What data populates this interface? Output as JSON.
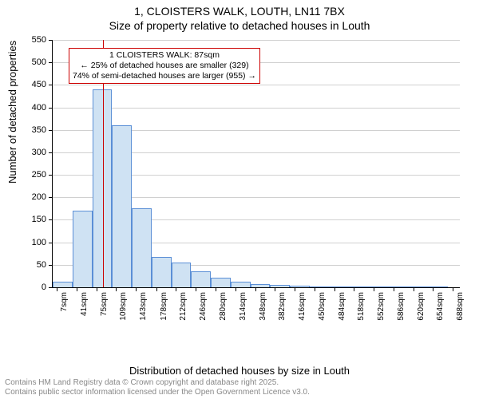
{
  "title": {
    "main": "1, CLOISTERS WALK, LOUTH, LN11 7BX",
    "sub": "Size of property relative to detached houses in Louth",
    "fontsize": 14,
    "color": "#000000"
  },
  "chart": {
    "type": "histogram",
    "background_color": "#ffffff",
    "grid_color": "#d0d0d0",
    "axis_color": "#000000",
    "bar_fill": "#cfe2f3",
    "bar_stroke": "#5b8fd6",
    "bar_stroke_width": 1,
    "ylim": [
      0,
      550
    ],
    "ytick_step": 50,
    "y_tick_labels": [
      "0",
      "50",
      "100",
      "150",
      "200",
      "250",
      "300",
      "350",
      "400",
      "450",
      "500",
      "550"
    ],
    "y_axis_label": "Number of detached properties",
    "x_axis_label": "Distribution of detached houses by size in Louth",
    "x_tick_labels": [
      "7sqm",
      "41sqm",
      "75sqm",
      "109sqm",
      "143sqm",
      "178sqm",
      "212sqm",
      "246sqm",
      "280sqm",
      "314sqm",
      "348sqm",
      "382sqm",
      "416sqm",
      "450sqm",
      "484sqm",
      "518sqm",
      "552sqm",
      "586sqm",
      "620sqm",
      "654sqm",
      "688sqm"
    ],
    "x_tick_values": [
      7,
      41,
      75,
      109,
      143,
      178,
      212,
      246,
      280,
      314,
      348,
      382,
      416,
      450,
      484,
      518,
      552,
      586,
      620,
      654,
      688
    ],
    "x_range": [
      0,
      700
    ],
    "label_fontsize": 13,
    "tick_fontsize": 11,
    "bars": [
      {
        "x0": 0,
        "x1": 34,
        "value": 12
      },
      {
        "x0": 34,
        "x1": 68,
        "value": 170
      },
      {
        "x0": 68,
        "x1": 102,
        "value": 440
      },
      {
        "x0": 102,
        "x1": 136,
        "value": 360
      },
      {
        "x0": 136,
        "x1": 170,
        "value": 175
      },
      {
        "x0": 170,
        "x1": 204,
        "value": 68
      },
      {
        "x0": 204,
        "x1": 238,
        "value": 55
      },
      {
        "x0": 238,
        "x1": 272,
        "value": 35
      },
      {
        "x0": 272,
        "x1": 306,
        "value": 22
      },
      {
        "x0": 306,
        "x1": 340,
        "value": 12
      },
      {
        "x0": 340,
        "x1": 374,
        "value": 7
      },
      {
        "x0": 374,
        "x1": 408,
        "value": 5
      },
      {
        "x0": 408,
        "x1": 442,
        "value": 3
      },
      {
        "x0": 442,
        "x1": 476,
        "value": 2
      },
      {
        "x0": 476,
        "x1": 510,
        "value": 1
      },
      {
        "x0": 510,
        "x1": 544,
        "value": 2
      },
      {
        "x0": 544,
        "x1": 578,
        "value": 0
      },
      {
        "x0": 578,
        "x1": 612,
        "value": 1
      },
      {
        "x0": 612,
        "x1": 646,
        "value": 0
      },
      {
        "x0": 646,
        "x1": 680,
        "value": 1
      }
    ],
    "reference_line": {
      "x": 87,
      "color": "#cc0000",
      "width": 1
    },
    "annotation": {
      "border_color": "#cc0000",
      "border_width": 1,
      "lines": [
        "1 CLOISTERS WALK: 87sqm",
        "← 25% of detached houses are smaller (329)",
        "74% of semi-detached houses are larger (955) →"
      ]
    }
  },
  "footer": {
    "line1": "Contains HM Land Registry data © Crown copyright and database right 2025.",
    "line2": "Contains public sector information licensed under the Open Government Licence v3.0.",
    "color": "#888888",
    "fontsize": 10
  }
}
